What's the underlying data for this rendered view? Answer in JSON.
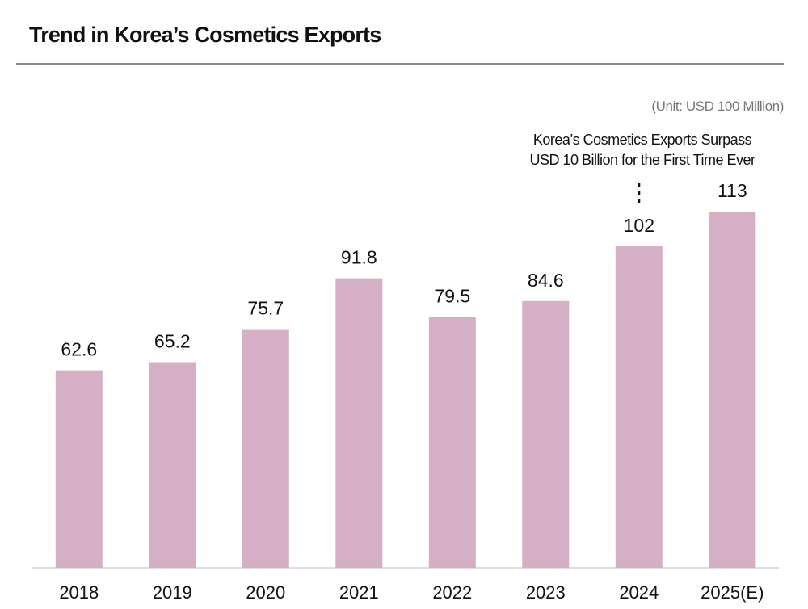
{
  "title": "Trend in Korea’s Cosmetics Exports",
  "unit": "(Unit: USD 100 Million)",
  "annotation": {
    "line1": "Korea’s Cosmetics Exports Surpass",
    "line2": "USD 10 Billion for the First Time Ever",
    "target_category": "2024"
  },
  "colors": {
    "bar": "#d4afc5",
    "axis": "#bbbbbb",
    "title_rule": "#8a8a8a",
    "text": "#111111"
  },
  "chart_data": {
    "type": "bar",
    "title": "Trend in Korea’s Cosmetics Exports",
    "xlabel": "",
    "ylabel": "",
    "unit": "(Unit: USD 100 Million)",
    "categories": [
      "2018",
      "2019",
      "2020",
      "2021",
      "2022",
      "2023",
      "2024",
      "2025(E)"
    ],
    "values": [
      62.6,
      65.2,
      75.7,
      91.8,
      79.5,
      84.6,
      102,
      113
    ],
    "value_labels": [
      "62.6",
      "65.2",
      "75.7",
      "91.8",
      "79.5",
      "84.6",
      "102",
      "113"
    ],
    "ylim": [
      0,
      113
    ],
    "grid": false,
    "legend": "none"
  }
}
